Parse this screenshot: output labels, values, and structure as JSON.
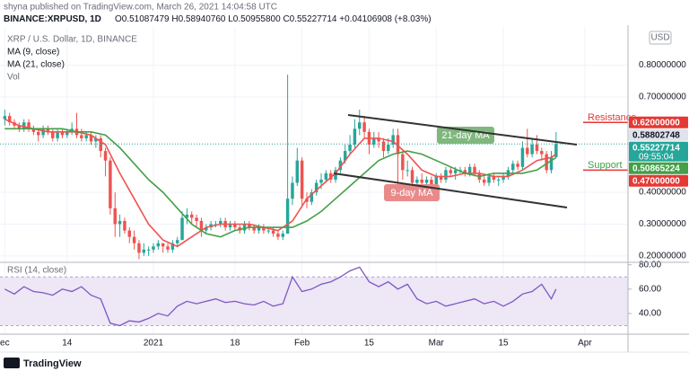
{
  "published": "shyna published on TradingView.com, March 26, 2021 14:04:58 UTC",
  "header": {
    "symbol": "BINANCE:XRPUSD, 1D",
    "open": "O0.51087479",
    "high": "H0.58940760",
    "low": "L0.50955800",
    "close": "C0.55227714",
    "change": "+0.04106908 (+8.03%)"
  },
  "watermark": "TradingView",
  "chart_data": [
    {
      "type": "candlestick",
      "title": "XRP / U.S. Dollar, 1D, BINANCE",
      "currency": "USD",
      "volume_label": "Vol",
      "up_color": "#26a69a",
      "down_color": "#ef5350",
      "grid": true,
      "xlim": [
        -1,
        130
      ],
      "xticks": [
        {
          "value": 0,
          "label": "ec"
        },
        {
          "value": 13,
          "label": "14"
        },
        {
          "value": 31,
          "label": "2021"
        },
        {
          "value": 48,
          "label": "18"
        },
        {
          "value": 62,
          "label": "Feb"
        },
        {
          "value": 76,
          "label": "15"
        },
        {
          "value": 90,
          "label": "Mar"
        },
        {
          "value": 104,
          "label": "15"
        },
        {
          "value": 121,
          "label": "Apr"
        }
      ],
      "ylim": [
        0.18,
        0.92
      ],
      "yticks": [
        {
          "value": 0.2,
          "label": "0.20000000"
        },
        {
          "value": 0.3,
          "label": "0.30000000"
        },
        {
          "value": 0.4,
          "label": "0.40000000"
        },
        {
          "value": 0.7,
          "label": "0.70000000"
        },
        {
          "value": 0.8,
          "label": "0.80000000"
        }
      ],
      "ohlc": [
        [
          0.63,
          0.66,
          0.61,
          0.64
        ],
        [
          0.64,
          0.65,
          0.61,
          0.62
        ],
        [
          0.62,
          0.63,
          0.6,
          0.61
        ],
        [
          0.61,
          0.62,
          0.59,
          0.6
        ],
        [
          0.6,
          0.63,
          0.59,
          0.62
        ],
        [
          0.62,
          0.63,
          0.59,
          0.6
        ],
        [
          0.6,
          0.61,
          0.58,
          0.59
        ],
        [
          0.59,
          0.6,
          0.56,
          0.58
        ],
        [
          0.58,
          0.61,
          0.57,
          0.6
        ],
        [
          0.6,
          0.61,
          0.58,
          0.59
        ],
        [
          0.59,
          0.6,
          0.56,
          0.57
        ],
        [
          0.57,
          0.6,
          0.56,
          0.59
        ],
        [
          0.59,
          0.6,
          0.57,
          0.58
        ],
        [
          0.58,
          0.6,
          0.57,
          0.59
        ],
        [
          0.59,
          0.62,
          0.58,
          0.6
        ],
        [
          0.6,
          0.65,
          0.57,
          0.58
        ],
        [
          0.58,
          0.6,
          0.56,
          0.57
        ],
        [
          0.57,
          0.59,
          0.56,
          0.58
        ],
        [
          0.58,
          0.59,
          0.55,
          0.56
        ],
        [
          0.56,
          0.58,
          0.54,
          0.57
        ],
        [
          0.57,
          0.58,
          0.51,
          0.53
        ],
        [
          0.53,
          0.54,
          0.45,
          0.5
        ],
        [
          0.5,
          0.51,
          0.33,
          0.35
        ],
        [
          0.35,
          0.4,
          0.26,
          0.3
        ],
        [
          0.3,
          0.33,
          0.26,
          0.31
        ],
        [
          0.31,
          0.32,
          0.27,
          0.28
        ],
        [
          0.28,
          0.29,
          0.24,
          0.26
        ],
        [
          0.26,
          0.28,
          0.22,
          0.24
        ],
        [
          0.24,
          0.25,
          0.19,
          0.21
        ],
        [
          0.21,
          0.24,
          0.2,
          0.22
        ],
        [
          0.22,
          0.23,
          0.2,
          0.22
        ],
        [
          0.22,
          0.24,
          0.21,
          0.23
        ],
        [
          0.23,
          0.25,
          0.22,
          0.24
        ],
        [
          0.24,
          0.24,
          0.21,
          0.23
        ],
        [
          0.23,
          0.24,
          0.21,
          0.22
        ],
        [
          0.22,
          0.25,
          0.21,
          0.24
        ],
        [
          0.24,
          0.26,
          0.23,
          0.25
        ],
        [
          0.25,
          0.34,
          0.25,
          0.32
        ],
        [
          0.32,
          0.35,
          0.3,
          0.33
        ],
        [
          0.33,
          0.34,
          0.3,
          0.32
        ],
        [
          0.32,
          0.33,
          0.29,
          0.31
        ],
        [
          0.31,
          0.32,
          0.26,
          0.28
        ],
        [
          0.28,
          0.3,
          0.27,
          0.29
        ],
        [
          0.29,
          0.31,
          0.28,
          0.3
        ],
        [
          0.3,
          0.31,
          0.29,
          0.3
        ],
        [
          0.3,
          0.32,
          0.29,
          0.31
        ],
        [
          0.31,
          0.32,
          0.28,
          0.29
        ],
        [
          0.29,
          0.31,
          0.28,
          0.3
        ],
        [
          0.3,
          0.31,
          0.28,
          0.29
        ],
        [
          0.29,
          0.3,
          0.27,
          0.28
        ],
        [
          0.28,
          0.31,
          0.27,
          0.3
        ],
        [
          0.3,
          0.31,
          0.28,
          0.29
        ],
        [
          0.29,
          0.3,
          0.27,
          0.28
        ],
        [
          0.28,
          0.3,
          0.27,
          0.29
        ],
        [
          0.29,
          0.3,
          0.27,
          0.28
        ],
        [
          0.28,
          0.29,
          0.27,
          0.28
        ],
        [
          0.28,
          0.29,
          0.26,
          0.27
        ],
        [
          0.27,
          0.28,
          0.25,
          0.26
        ],
        [
          0.26,
          0.28,
          0.25,
          0.27
        ],
        [
          0.27,
          0.77,
          0.27,
          0.38
        ],
        [
          0.38,
          0.45,
          0.36,
          0.43
        ],
        [
          0.43,
          0.54,
          0.42,
          0.5
        ],
        [
          0.5,
          0.51,
          0.36,
          0.38
        ],
        [
          0.38,
          0.4,
          0.35,
          0.37
        ],
        [
          0.37,
          0.41,
          0.36,
          0.4
        ],
        [
          0.4,
          0.44,
          0.39,
          0.43
        ],
        [
          0.43,
          0.46,
          0.41,
          0.44
        ],
        [
          0.44,
          0.47,
          0.43,
          0.46
        ],
        [
          0.46,
          0.47,
          0.43,
          0.44
        ],
        [
          0.44,
          0.48,
          0.43,
          0.47
        ],
        [
          0.47,
          0.51,
          0.46,
          0.5
        ],
        [
          0.5,
          0.55,
          0.49,
          0.53
        ],
        [
          0.53,
          0.58,
          0.52,
          0.55
        ],
        [
          0.55,
          0.63,
          0.54,
          0.6
        ],
        [
          0.6,
          0.66,
          0.58,
          0.62
        ],
        [
          0.62,
          0.64,
          0.57,
          0.59
        ],
        [
          0.59,
          0.6,
          0.52,
          0.55
        ],
        [
          0.55,
          0.59,
          0.54,
          0.57
        ],
        [
          0.57,
          0.59,
          0.54,
          0.56
        ],
        [
          0.56,
          0.57,
          0.51,
          0.53
        ],
        [
          0.53,
          0.57,
          0.52,
          0.55
        ],
        [
          0.55,
          0.6,
          0.54,
          0.58
        ],
        [
          0.58,
          0.6,
          0.38,
          0.52
        ],
        [
          0.52,
          0.53,
          0.44,
          0.47
        ],
        [
          0.47,
          0.5,
          0.45,
          0.47
        ],
        [
          0.47,
          0.48,
          0.42,
          0.43
        ],
        [
          0.43,
          0.45,
          0.41,
          0.44
        ],
        [
          0.44,
          0.46,
          0.41,
          0.43
        ],
        [
          0.43,
          0.45,
          0.42,
          0.44
        ],
        [
          0.44,
          0.45,
          0.4,
          0.42
        ],
        [
          0.42,
          0.46,
          0.41,
          0.45
        ],
        [
          0.45,
          0.46,
          0.43,
          0.44
        ],
        [
          0.44,
          0.48,
          0.43,
          0.47
        ],
        [
          0.47,
          0.48,
          0.45,
          0.46
        ],
        [
          0.46,
          0.48,
          0.44,
          0.47
        ],
        [
          0.47,
          0.48,
          0.46,
          0.47
        ],
        [
          0.47,
          0.48,
          0.45,
          0.46
        ],
        [
          0.46,
          0.49,
          0.45,
          0.48
        ],
        [
          0.48,
          0.49,
          0.45,
          0.46
        ],
        [
          0.46,
          0.47,
          0.43,
          0.44
        ],
        [
          0.44,
          0.45,
          0.42,
          0.43
        ],
        [
          0.43,
          0.46,
          0.42,
          0.45
        ],
        [
          0.45,
          0.46,
          0.43,
          0.44
        ],
        [
          0.44,
          0.45,
          0.42,
          0.44
        ],
        [
          0.44,
          0.46,
          0.43,
          0.45
        ],
        [
          0.45,
          0.48,
          0.44,
          0.47
        ],
        [
          0.47,
          0.5,
          0.46,
          0.49
        ],
        [
          0.49,
          0.5,
          0.47,
          0.48
        ],
        [
          0.48,
          0.56,
          0.47,
          0.54
        ],
        [
          0.54,
          0.6,
          0.51,
          0.52
        ],
        [
          0.52,
          0.57,
          0.51,
          0.55
        ],
        [
          0.55,
          0.58,
          0.52,
          0.53
        ],
        [
          0.53,
          0.54,
          0.5,
          0.52
        ],
        [
          0.52,
          0.53,
          0.46,
          0.47
        ],
        [
          0.47,
          0.53,
          0.46,
          0.51087479
        ],
        [
          0.51087479,
          0.5894076,
          0.509558,
          0.55227714
        ]
      ],
      "lines": [
        {
          "name": "MA (9, close)",
          "color": "#ef5350",
          "x": [
            0,
            3,
            6,
            9,
            12,
            15,
            18,
            21,
            24,
            27,
            30,
            33,
            36,
            39,
            42,
            45,
            48,
            51,
            54,
            57,
            60,
            63,
            66,
            69,
            72,
            75,
            78,
            81,
            84,
            87,
            90,
            93,
            96,
            99,
            102,
            105,
            108,
            111,
            114,
            115
          ],
          "values": [
            0.63,
            0.61,
            0.6,
            0.59,
            0.59,
            0.59,
            0.58,
            0.55,
            0.46,
            0.38,
            0.3,
            0.25,
            0.23,
            0.26,
            0.29,
            0.3,
            0.3,
            0.3,
            0.29,
            0.28,
            0.31,
            0.38,
            0.42,
            0.46,
            0.52,
            0.57,
            0.57,
            0.56,
            0.52,
            0.47,
            0.45,
            0.45,
            0.46,
            0.46,
            0.45,
            0.45,
            0.47,
            0.5,
            0.51,
            0.52
          ]
        },
        {
          "name": "MA (21, close)",
          "color": "#43a047",
          "x": [
            0,
            3,
            6,
            9,
            12,
            15,
            18,
            21,
            24,
            27,
            30,
            33,
            36,
            39,
            42,
            45,
            48,
            51,
            54,
            57,
            60,
            63,
            66,
            69,
            72,
            75,
            78,
            81,
            84,
            87,
            90,
            93,
            96,
            99,
            102,
            105,
            108,
            111,
            114,
            115
          ],
          "values": [
            0.6,
            0.6,
            0.6,
            0.6,
            0.6,
            0.59,
            0.59,
            0.58,
            0.54,
            0.49,
            0.44,
            0.4,
            0.35,
            0.3,
            0.27,
            0.26,
            0.28,
            0.29,
            0.29,
            0.29,
            0.29,
            0.31,
            0.34,
            0.38,
            0.42,
            0.46,
            0.5,
            0.52,
            0.53,
            0.52,
            0.5,
            0.48,
            0.46,
            0.45,
            0.46,
            0.46,
            0.46,
            0.47,
            0.5,
            0.50865224
          ]
        }
      ],
      "price_labels": [
        {
          "value": 0.62,
          "label": "0.62000000",
          "color": "#e53935"
        },
        {
          "value": 0.58802748,
          "label": "0.58802748",
          "color": "#e0e3eb"
        },
        {
          "value": 0.55227714,
          "label": "0.55227714",
          "color": "#26a69a",
          "time": "09:55:04"
        },
        {
          "value": 0.50865224,
          "label": "0.50865224",
          "color": "#43a047"
        },
        {
          "value": 0.47,
          "label": "0.47000000",
          "color": "#e53935"
        }
      ],
      "annotations": [
        {
          "text": "Resistance",
          "color": "#e53935"
        },
        {
          "text": "Support",
          "color": "#43a047"
        },
        {
          "text": "21-day MA",
          "color": "#7fb77e"
        },
        {
          "text": "9-day MA",
          "color": "#e88a8a"
        }
      ]
    },
    {
      "type": "line",
      "title": "RSI (14, close)",
      "color": "#7e57c2",
      "band": [
        30,
        70
      ],
      "xlim": [
        -1,
        130
      ],
      "ylim": [
        23,
        82
      ],
      "yticks": [
        {
          "value": 80,
          "label": "80.00"
        },
        {
          "value": 60,
          "label": "60.00"
        },
        {
          "value": 40,
          "label": "40.00"
        }
      ],
      "x": [
        0,
        2,
        4,
        6,
        8,
        10,
        12,
        14,
        16,
        18,
        20,
        22,
        24,
        26,
        28,
        30,
        32,
        34,
        36,
        38,
        40,
        42,
        44,
        46,
        48,
        50,
        52,
        54,
        56,
        58,
        60,
        62,
        64,
        66,
        68,
        70,
        72,
        74,
        76,
        78,
        80,
        82,
        84,
        86,
        88,
        90,
        92,
        94,
        96,
        98,
        100,
        102,
        104,
        106,
        108,
        110,
        112,
        114,
        115
      ],
      "values": [
        60,
        56,
        62,
        58,
        57,
        55,
        60,
        58,
        62,
        55,
        52,
        32,
        30,
        34,
        33,
        36,
        40,
        38,
        46,
        50,
        48,
        50,
        52,
        49,
        50,
        48,
        47,
        50,
        46,
        48,
        70,
        58,
        60,
        64,
        66,
        70,
        75,
        78,
        66,
        62,
        66,
        60,
        64,
        52,
        48,
        50,
        46,
        48,
        50,
        52,
        48,
        50,
        46,
        50,
        56,
        58,
        64,
        52,
        60
      ]
    }
  ]
}
